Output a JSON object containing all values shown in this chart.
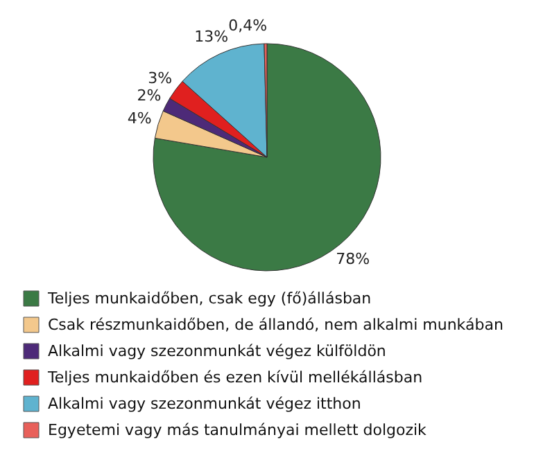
{
  "chart_data": {
    "type": "pie",
    "categories": [
      "Teljes munkaidőben, csak egy (fő)állásban",
      "Csak részmunkaidőben, de állandó, nem alkalmi munkában",
      "Alkalmi vagy szezonmunkát végez külföldön",
      "Teljes munkaidőben és ezen kívül mellékállásban",
      "Alkalmi vagy szezonmunkát végez itthon",
      "Egyetemi vagy más tanulmányai mellett dolgozik"
    ],
    "values": [
      78,
      4,
      2,
      3,
      13,
      0.4
    ],
    "value_labels": [
      "78%",
      "4%",
      "2%",
      "3%",
      "13%",
      "0,4%"
    ],
    "colors": [
      "#3b7a45",
      "#f3c88c",
      "#4d2a78",
      "#e0201f",
      "#5fb3cf",
      "#e8605a"
    ],
    "legend": "bottom"
  }
}
